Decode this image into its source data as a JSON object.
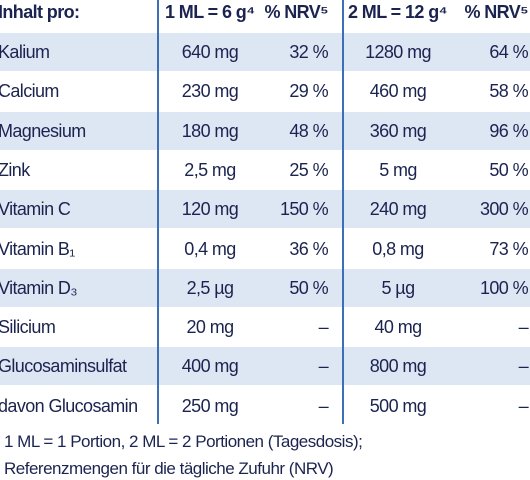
{
  "table": {
    "header": [
      "Inhalt pro:",
      "1 ML = 6 g⁴",
      "% NRV⁵",
      "2 ML = 12 g⁴",
      "% NRV⁵"
    ],
    "rows": [
      [
        "Kalium",
        "640 mg",
        "32 %",
        "1280 mg",
        "64 %"
      ],
      [
        "Calcium",
        "230 mg",
        "29 %",
        "460 mg",
        "58 %"
      ],
      [
        "Magnesium",
        "180 mg",
        "48 %",
        "360 mg",
        "96 %"
      ],
      [
        "Zink",
        "2,5 mg",
        "25 %",
        "5 mg",
        "50 %"
      ],
      [
        "Vitamin C",
        "120 mg",
        "150 %",
        "240 mg",
        "300 %"
      ],
      [
        "Vitamin B₁",
        "0,4 mg",
        "36 %",
        "0,8 mg",
        "73 %"
      ],
      [
        "Vitamin D₃",
        "2,5 µg",
        "50 %",
        "5 µg",
        "100 %"
      ],
      [
        "Silicium",
        "20 mg",
        "–",
        "40 mg",
        "–"
      ],
      [
        "Glucosaminsulfat",
        "400 mg",
        "–",
        "800 mg",
        "–"
      ],
      [
        "davon Glucosamin",
        "250 mg",
        "–",
        "500 mg",
        "–"
      ]
    ]
  },
  "footnotes": [
    "1 ML = 1 Portion, 2 ML = 2 Portionen (Tagesdosis);",
    "Referenzmengen für die tägliche Zufuhr (NRV)"
  ]
}
